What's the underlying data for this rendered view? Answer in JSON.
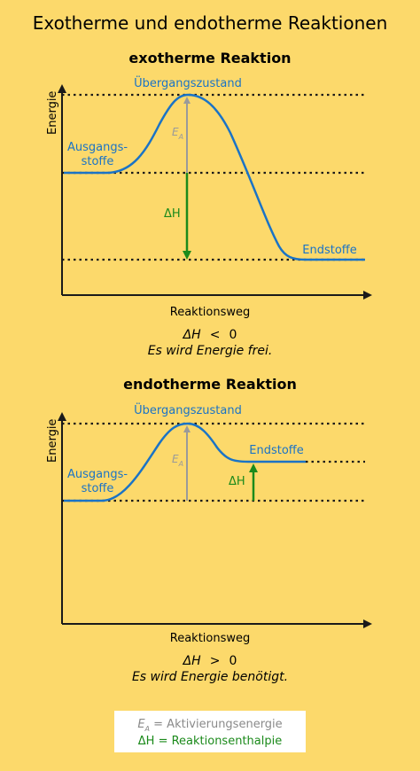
{
  "title": "Exotherme und endotherme Reaktionen",
  "exo": {
    "heading": "exotherme Reaktion",
    "transition_label": "Übergangszustand",
    "start_label_1": "Ausgangs-",
    "start_label_2": "stoffe",
    "end_label": "Endstoffe",
    "ylabel": "Energie",
    "xlabel": "Reaktionsweg",
    "ea_label": "E",
    "ea_sub": "A",
    "dh_label": "ΔH",
    "eq_dh": "ΔH",
    "eq_sign": "<",
    "eq_value": "0",
    "note": "Es wird Energie frei."
  },
  "endo": {
    "heading": "endotherme Reaktion",
    "transition_label": "Übergangszustand",
    "start_label_1": "Ausgangs-",
    "start_label_2": "stoffe",
    "end_label": "Endstoffe",
    "ylabel": "Energie",
    "xlabel": "Reaktionsweg",
    "ea_label": "E",
    "ea_sub": "A",
    "dh_label": "ΔH",
    "eq_dh": "ΔH",
    "eq_sign": ">",
    "eq_value": "0",
    "note": "Es wird Energie benötigt."
  },
  "legend": {
    "ea_symbol": "E",
    "ea_sub": "A",
    "ea_text": " = Aktivierungsenergie",
    "dh_text": "ΔH = Reaktionsenthalpie"
  },
  "colors": {
    "background": "#fcd96b",
    "curve": "#1a73c6",
    "activation_arrow": "#9a9a9a",
    "enthalpy_arrow": "#1b8a1b"
  }
}
